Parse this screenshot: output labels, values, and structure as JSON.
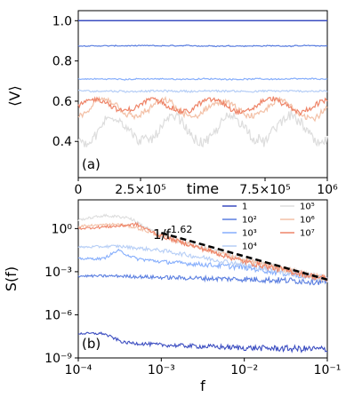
{
  "chart_data": [
    {
      "type": "line",
      "panel_label": "(a)",
      "xlabel": "time",
      "ylabel": "⟨V⟩",
      "xlim": [
        0,
        1000000
      ],
      "ylim": [
        0.22,
        1.05
      ],
      "x_tick_labels": [
        "0",
        "2.5×10⁵",
        "7.5×10⁵",
        "10⁶"
      ],
      "x_tick_values": [
        0,
        250000,
        750000,
        1000000
      ],
      "y_tick_labels": [
        "0.4",
        "0.6",
        "0.8",
        "1.0"
      ],
      "y_tick_values": [
        0.4,
        0.6,
        0.8,
        1.0
      ],
      "series": [
        {
          "color": "#3a4cc0",
          "mean": 1.0,
          "noise": 0.0
        },
        {
          "color": "#5a7ee0",
          "mean": 0.875,
          "noise": 0.008
        },
        {
          "color": "#86aefc",
          "mean": 0.71,
          "noise": 0.01
        },
        {
          "color": "#b6cef6",
          "mean": 0.65,
          "noise": 0.015
        },
        {
          "color": "#dddddd",
          "mean": 0.46,
          "noise": 0.08
        },
        {
          "color": "#f3c0a6",
          "mean": 0.56,
          "noise": 0.05
        },
        {
          "color": "#ee8468",
          "mean": 0.58,
          "noise": 0.04
        }
      ]
    },
    {
      "type": "line",
      "panel_label": "(b)",
      "xlabel": "f",
      "ylabel": "S(f)",
      "xscale": "log",
      "yscale": "log",
      "xlim": [
        0.0001,
        0.1
      ],
      "ylim": [
        1e-09,
        100
      ],
      "x_tick_labels": [
        "10⁻⁴",
        "10⁻³",
        "10⁻²",
        "10⁻¹"
      ],
      "x_tick_values": [
        0.0001,
        0.001,
        0.01,
        0.1
      ],
      "y_tick_labels": [
        "10⁻⁹",
        "10⁻⁶",
        "10⁻³",
        "10⁰"
      ],
      "y_tick_values": [
        1e-09,
        1e-06,
        0.001,
        1
      ],
      "annotation": {
        "base": "1/f",
        "exponent": "1.62"
      },
      "fit_line": {
        "x": [
          0.001,
          0.1
        ],
        "y": [
          0.5,
          0.00028
        ],
        "color": "#000000",
        "style": "dashed"
      },
      "legend": {
        "placement": "top-right",
        "entries": [
          {
            "label": "1",
            "color": "#3a4cc0"
          },
          {
            "label": "10²",
            "color": "#5a7ee0"
          },
          {
            "label": "10³",
            "color": "#86aefc"
          },
          {
            "label": "10⁴",
            "color": "#b6cef6"
          },
          {
            "label": "10⁵",
            "color": "#dddddd"
          },
          {
            "label": "10⁶",
            "color": "#f3c0a6"
          },
          {
            "label": "10⁷",
            "color": "#ee8468"
          }
        ]
      },
      "series": [
        {
          "name": "1",
          "color": "#3a4cc0",
          "points": [
            [
              0.0001,
              5e-08
            ],
            [
              0.0002,
              5e-08
            ],
            [
              0.00035,
              1.2e-08
            ],
            [
              0.001,
              8e-09
            ],
            [
              0.01,
              5e-09
            ],
            [
              0.1,
              4e-09
            ]
          ]
        },
        {
          "name": "10²",
          "color": "#5a7ee0",
          "points": [
            [
              0.0001,
              0.0005
            ],
            [
              0.0003,
              0.0005
            ],
            [
              0.001,
              0.0004
            ],
            [
              0.01,
              0.0003
            ],
            [
              0.1,
              0.0002
            ]
          ]
        },
        {
          "name": "10³",
          "color": "#86aefc",
          "points": [
            [
              0.0001,
              0.008
            ],
            [
              0.0002,
              0.008
            ],
            [
              0.0003,
              0.03
            ],
            [
              0.0005,
              0.008
            ],
            [
              0.001,
              0.005
            ],
            [
              0.01,
              0.002
            ],
            [
              0.1,
              0.0003
            ]
          ]
        },
        {
          "name": "10⁴",
          "color": "#b6cef6",
          "points": [
            [
              0.0001,
              0.05
            ],
            [
              0.0003,
              0.06
            ],
            [
              0.001,
              0.03
            ],
            [
              0.01,
              0.003
            ],
            [
              0.1,
              0.0003
            ]
          ]
        },
        {
          "name": "10⁵",
          "color": "#dddddd",
          "points": [
            [
              0.0001,
              4
            ],
            [
              0.0002,
              8
            ],
            [
              0.0004,
              6
            ],
            [
              0.001,
              0.3
            ],
            [
              0.01,
              0.008
            ],
            [
              0.1,
              0.0003
            ]
          ]
        },
        {
          "name": "10⁶",
          "color": "#f3c0a6",
          "points": [
            [
              0.0001,
              1.5
            ],
            [
              0.0003,
              2
            ],
            [
              0.0005,
              1.2
            ],
            [
              0.001,
              0.3
            ],
            [
              0.01,
              0.006
            ],
            [
              0.1,
              0.0003
            ]
          ]
        },
        {
          "name": "10⁷",
          "color": "#ee8468",
          "points": [
            [
              0.0001,
              1
            ],
            [
              0.0003,
              1.5
            ],
            [
              0.0005,
              2
            ],
            [
              0.001,
              0.3
            ],
            [
              0.01,
              0.005
            ],
            [
              0.1,
              0.0003
            ]
          ]
        }
      ]
    }
  ]
}
